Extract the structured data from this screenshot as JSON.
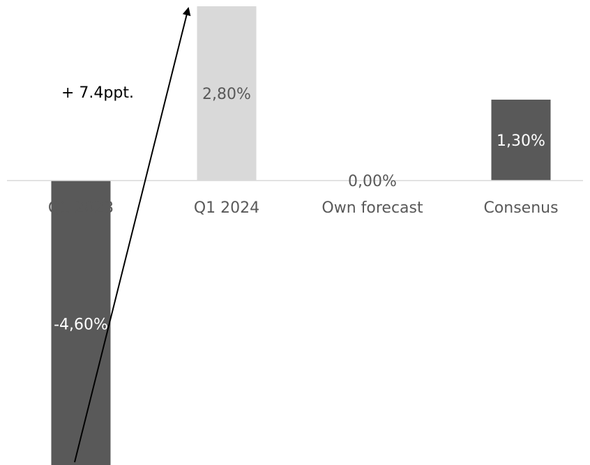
{
  "chart_data": {
    "type": "bar",
    "title": "",
    "xlabel": "",
    "ylabel": "",
    "categories": [
      "Q1 2023",
      "Q1 2024",
      "Own forecast",
      "Consenus"
    ],
    "values": [
      -4.6,
      2.8,
      0.0,
      1.3
    ],
    "value_labels": [
      "-4,60%",
      "2,80%",
      "0,00%",
      "1,30%"
    ],
    "bar_colors": [
      "#595959",
      "#d9d9d9",
      "#595959",
      "#595959"
    ],
    "value_label_colors": [
      "#ffffff",
      "#595959",
      "#595959",
      "#ffffff"
    ],
    "axis_label_color": "#595959",
    "axis_line_color": "#d9d9d9",
    "ylim": [
      -4.6,
      2.8
    ],
    "grid": false,
    "legend": "none",
    "annotation": {
      "text": "+ 7.4ppt.",
      "arrow_from": {
        "category": "Q1 2023",
        "value": -4.6
      },
      "arrow_to": {
        "category": "Q1 2024",
        "value": 2.8
      },
      "arrow_color": "#000000"
    }
  }
}
